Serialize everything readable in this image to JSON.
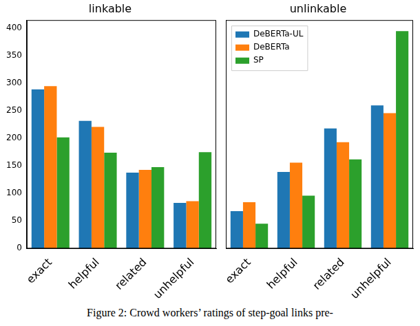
{
  "chart_data": [
    {
      "type": "bar",
      "title": "linkable",
      "categories": [
        "exact",
        "helpful",
        "related",
        "unhelpful"
      ],
      "series": [
        {
          "name": "DeBERTa-UL",
          "color": "#1f77b4",
          "values": [
            289,
            232,
            138,
            83
          ]
        },
        {
          "name": "DeBERTa",
          "color": "#ff7f0e",
          "values": [
            295,
            221,
            143,
            86
          ]
        },
        {
          "name": "SP",
          "color": "#2ca02c",
          "values": [
            202,
            174,
            148,
            175
          ]
        }
      ],
      "ylim": [
        0,
        415
      ],
      "yticks": [
        0,
        50,
        100,
        150,
        200,
        250,
        300,
        350,
        400
      ],
      "grid": false
    },
    {
      "type": "bar",
      "title": "unlinkable",
      "categories": [
        "exact",
        "helpful",
        "related",
        "unhelpful"
      ],
      "series": [
        {
          "name": "DeBERTa-UL",
          "color": "#1f77b4",
          "values": [
            68,
            139,
            218,
            260
          ]
        },
        {
          "name": "DeBERTa",
          "color": "#ff7f0e",
          "values": [
            84,
            156,
            193,
            246
          ]
        },
        {
          "name": "SP",
          "color": "#2ca02c",
          "values": [
            45,
            96,
            162,
            395
          ]
        }
      ],
      "ylim": [
        0,
        415
      ],
      "yticks": [
        0,
        50,
        100,
        150,
        200,
        250,
        300,
        350,
        400
      ],
      "grid": false,
      "tick_labels": "x",
      "legend": "upper left"
    }
  ],
  "caption": "Figure 2: Crowd workers’ ratings of step-goal links pre-"
}
